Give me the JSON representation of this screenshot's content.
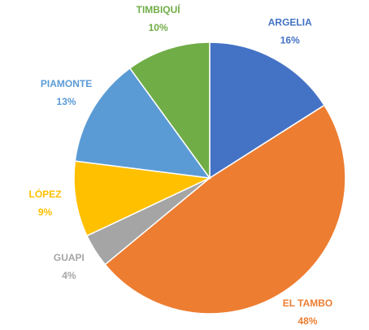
{
  "chart_data": {
    "type": "pie",
    "categories": [
      "ARGELIA",
      "EL TAMBO",
      "GUAPI",
      "LÓPEZ",
      "PIAMONTE",
      "TIMBIQUÍ"
    ],
    "values": [
      16,
      48,
      4,
      9,
      13,
      10
    ],
    "value_labels": [
      "16%",
      "48%",
      "4%",
      "9%",
      "13%",
      "10%"
    ],
    "colors": [
      "#4472c4",
      "#ed7d31",
      "#a5a5a5",
      "#ffc000",
      "#5b9bd5",
      "#70ad47"
    ]
  }
}
